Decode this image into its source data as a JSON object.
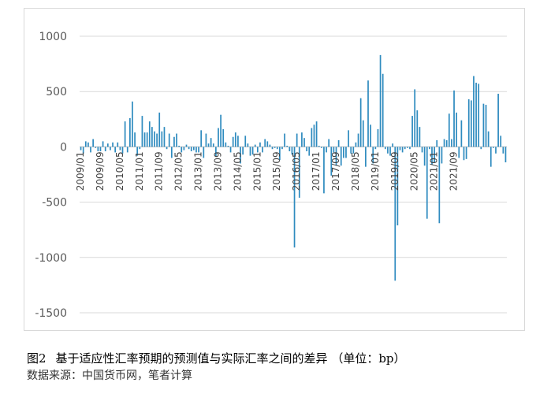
{
  "chart_data": {
    "type": "bar",
    "title": "",
    "xlabel": "",
    "ylabel": "",
    "ylim": [
      -1500,
      1000
    ],
    "yticks": [
      1000,
      500,
      0,
      -500,
      -1000,
      -1500
    ],
    "grid": true,
    "legend": "none",
    "bar_color": "#2e8bbf",
    "x_start": "2009/01",
    "x_tick_labels": [
      "2009/01",
      "2009/09",
      "2010/05",
      "2011/01",
      "2011/09",
      "2012/05",
      "2013/01",
      "2013/09",
      "2014/05",
      "2015/01",
      "2015/09",
      "2016/05",
      "2017/01",
      "2017/09",
      "2018/05",
      "2019/01",
      "2019/09",
      "2020/05",
      "2021/01",
      "2021/09"
    ],
    "values": [
      -30,
      -60,
      50,
      40,
      -50,
      70,
      -10,
      -40,
      -40,
      50,
      -40,
      30,
      -30,
      40,
      -50,
      40,
      -30,
      -60,
      230,
      -50,
      260,
      410,
      130,
      -80,
      -20,
      280,
      130,
      130,
      230,
      180,
      140,
      120,
      310,
      140,
      180,
      -20,
      120,
      -100,
      90,
      120,
      10,
      -50,
      -30,
      20,
      -20,
      -40,
      -30,
      -50,
      -50,
      150,
      -100,
      120,
      30,
      80,
      30,
      -90,
      170,
      290,
      160,
      40,
      10,
      -50,
      90,
      130,
      100,
      -150,
      -70,
      100,
      30,
      -80,
      -70,
      20,
      -50,
      40,
      -50,
      70,
      50,
      20,
      -20,
      -10,
      -20,
      -120,
      -20,
      120,
      10,
      -40,
      -70,
      -910,
      120,
      -460,
      130,
      80,
      -40,
      -80,
      170,
      200,
      230,
      10,
      -10,
      -420,
      -50,
      70,
      -260,
      -50,
      -170,
      60,
      -170,
      -100,
      -100,
      150,
      -60,
      -60,
      40,
      120,
      440,
      240,
      -180,
      600,
      200,
      -150,
      -20,
      160,
      830,
      660,
      -20,
      -60,
      -80,
      30,
      -1210,
      -710,
      -30,
      -50,
      -20,
      -10,
      -20,
      280,
      520,
      330,
      180,
      -50,
      -170,
      -650,
      -20,
      -160,
      -140,
      60,
      -690,
      -150,
      70,
      60,
      300,
      70,
      510,
      310,
      -100,
      240,
      -120,
      -110,
      430,
      420,
      640,
      580,
      570,
      -20,
      390,
      380,
      140,
      -180,
      -10,
      -60,
      480,
      100,
      -60,
      -140
    ]
  },
  "caption": {
    "fig_num": "图2",
    "text": "基于适应性汇率预期的预测值与实际汇率之间的差异 （单位：bp）"
  },
  "source": "数据来源：中国货币网，笔者计算"
}
